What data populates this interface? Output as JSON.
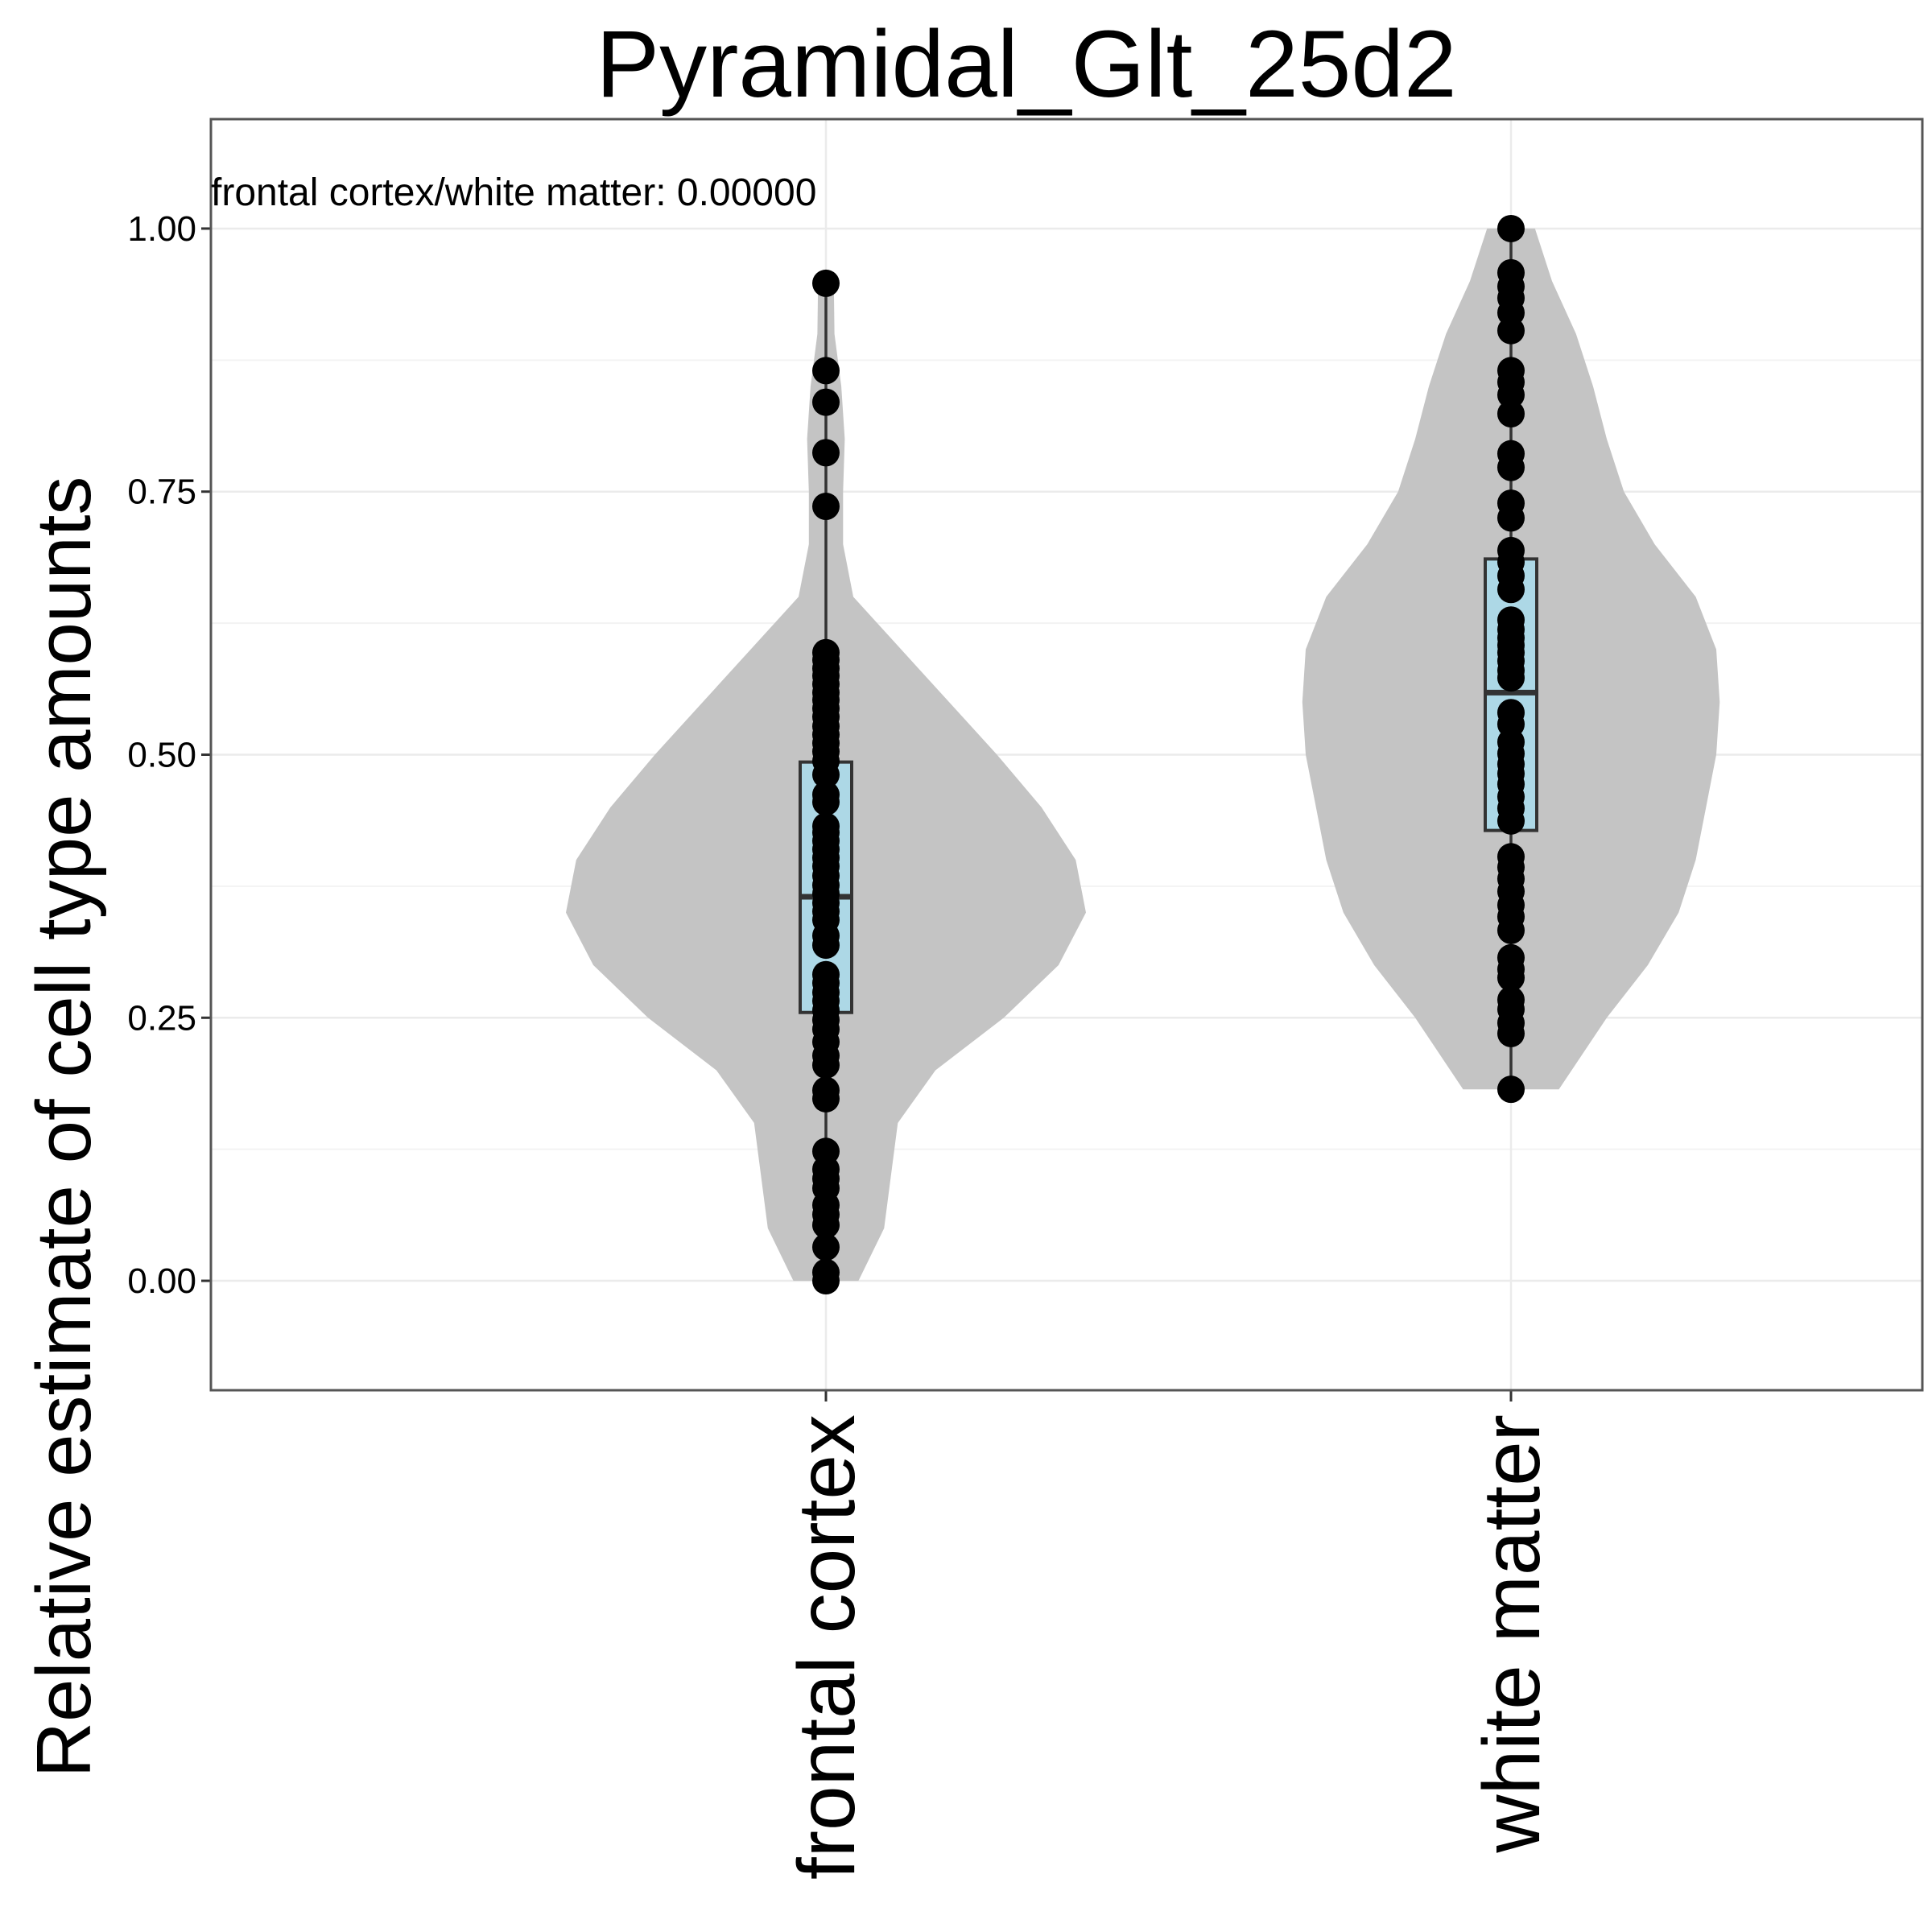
{
  "chart_data": {
    "type": "violin",
    "title": "Pyramidal_Glt_25d2",
    "xlabel": "",
    "ylabel": "Relative estimate of cell type amounts",
    "annotation": "frontal cortex/white matter: 0.00000",
    "categories": [
      "frontal cortex",
      "white matter"
    ],
    "ylim": [
      -0.104,
      1.104
    ],
    "yticks": [
      0.0,
      0.25,
      0.5,
      0.75,
      1.0
    ],
    "ytick_labels": [
      "0.00",
      "0.25",
      "0.50",
      "0.75",
      "1.00"
    ],
    "grid": true,
    "colors": {
      "violin": "#c4c4c4",
      "box": "#add8e6",
      "point": "#000000",
      "grid": "#ebebeb",
      "border": "#555555"
    },
    "groups": [
      {
        "name": "frontal cortex",
        "box": {
          "q1": 0.255,
          "median": 0.365,
          "q3": 0.493,
          "whisker_low": 0.0,
          "whisker_high": 0.948
        },
        "density": [
          [
            0.0,
            0.095
          ],
          [
            0.05,
            0.17
          ],
          [
            0.1,
            0.19
          ],
          [
            0.15,
            0.21
          ],
          [
            0.2,
            0.32
          ],
          [
            0.25,
            0.52
          ],
          [
            0.3,
            0.68
          ],
          [
            0.35,
            0.76
          ],
          [
            0.4,
            0.73
          ],
          [
            0.45,
            0.63
          ],
          [
            0.5,
            0.5
          ],
          [
            0.55,
            0.36
          ],
          [
            0.6,
            0.22
          ],
          [
            0.65,
            0.08
          ],
          [
            0.7,
            0.05
          ],
          [
            0.75,
            0.05
          ],
          [
            0.8,
            0.055
          ],
          [
            0.85,
            0.045
          ],
          [
            0.9,
            0.025
          ],
          [
            0.948,
            0.023
          ]
        ],
        "points": [
          0.948,
          0.865,
          0.835,
          0.787,
          0.736,
          0.597,
          0.59,
          0.582,
          0.575,
          0.567,
          0.559,
          0.552,
          0.544,
          0.536,
          0.527,
          0.519,
          0.511,
          0.503,
          0.494,
          0.481,
          0.462,
          0.455,
          0.432,
          0.426,
          0.418,
          0.41,
          0.402,
          0.394,
          0.385,
          0.376,
          0.368,
          0.359,
          0.351,
          0.343,
          0.328,
          0.319,
          0.291,
          0.283,
          0.274,
          0.266,
          0.257,
          0.248,
          0.239,
          0.227,
          0.214,
          0.205,
          0.181,
          0.173,
          0.123,
          0.106,
          0.097,
          0.088,
          0.072,
          0.063,
          0.053,
          0.032,
          0.008,
          0.0
        ]
      },
      {
        "name": "white matter",
        "box": {
          "q1": 0.428,
          "median": 0.559,
          "q3": 0.686,
          "whisker_low": 0.182,
          "whisker_high": 1.0
        },
        "density": [
          [
            0.182,
            0.14
          ],
          [
            0.25,
            0.28
          ],
          [
            0.3,
            0.4
          ],
          [
            0.35,
            0.49
          ],
          [
            0.4,
            0.54
          ],
          [
            0.45,
            0.57
          ],
          [
            0.5,
            0.6
          ],
          [
            0.55,
            0.61
          ],
          [
            0.6,
            0.6
          ],
          [
            0.65,
            0.54
          ],
          [
            0.7,
            0.42
          ],
          [
            0.75,
            0.33
          ],
          [
            0.8,
            0.28
          ],
          [
            0.85,
            0.24
          ],
          [
            0.9,
            0.19
          ],
          [
            0.95,
            0.12
          ],
          [
            1.0,
            0.07
          ]
        ],
        "points": [
          1.0,
          0.958,
          0.945,
          0.934,
          0.92,
          0.903,
          0.865,
          0.854,
          0.842,
          0.824,
          0.786,
          0.773,
          0.739,
          0.725,
          0.694,
          0.683,
          0.67,
          0.657,
          0.628,
          0.619,
          0.611,
          0.604,
          0.597,
          0.589,
          0.58,
          0.573,
          0.54,
          0.529,
          0.512,
          0.501,
          0.491,
          0.482,
          0.472,
          0.46,
          0.449,
          0.437,
          0.403,
          0.393,
          0.382,
          0.37,
          0.357,
          0.346,
          0.333,
          0.307,
          0.296,
          0.288,
          0.267,
          0.258,
          0.245,
          0.235,
          0.182
        ]
      }
    ]
  }
}
